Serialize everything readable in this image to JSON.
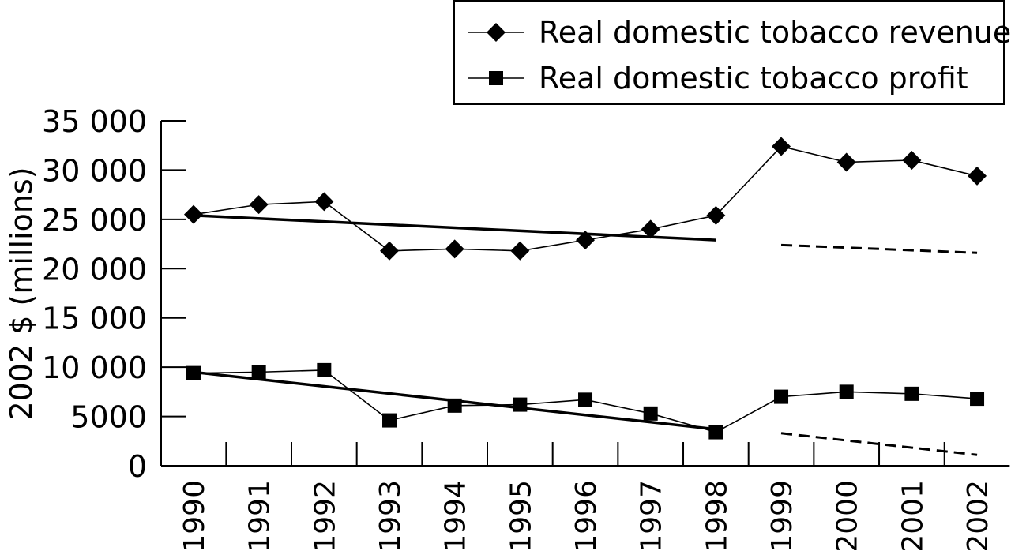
{
  "chart_data": {
    "type": "line",
    "categories": [
      "1990",
      "1991",
      "1992",
      "1993",
      "1994",
      "1995",
      "1996",
      "1997",
      "1998",
      "1999",
      "2000",
      "2001",
      "2002"
    ],
    "ylabel": "2002 $ (millions)",
    "ylim": [
      0,
      35000
    ],
    "yticks": [
      0,
      5000,
      10000,
      15000,
      20000,
      25000,
      30000,
      35000
    ],
    "ytick_labels": [
      "0",
      "5000",
      "10 000",
      "15 000",
      "20 000",
      "25 000",
      "30 000",
      "35 000"
    ],
    "legend_position": "top-right",
    "series": [
      {
        "name": "Real domestic tobacco revenue",
        "marker": "diamond",
        "values": [
          25500,
          26500,
          26800,
          21800,
          22000,
          21800,
          22900,
          24000,
          25400,
          32400,
          30800,
          31000,
          29400
        ]
      },
      {
        "name": "Real domestic tobacco profit",
        "marker": "square",
        "values": [
          9400,
          9500,
          9700,
          4600,
          6100,
          6200,
          6700,
          5300,
          3400,
          7000,
          7500,
          7300,
          6800
        ]
      }
    ],
    "trend_lines": [
      {
        "series": "revenue",
        "style": "solid",
        "from_x": "1990",
        "to_x": "1998",
        "y_start": 25400,
        "y_end": 22900
      },
      {
        "series": "revenue",
        "style": "dashed",
        "from_x": "1999",
        "to_x": "2002",
        "y_start": 22400,
        "y_end": 21600
      },
      {
        "series": "profit",
        "style": "solid",
        "from_x": "1990",
        "to_x": "1998",
        "y_start": 9500,
        "y_end": 3700
      },
      {
        "series": "profit",
        "style": "dashed",
        "from_x": "1999",
        "to_x": "2002",
        "y_start": 3300,
        "y_end": 1100
      }
    ],
    "grid": false
  }
}
